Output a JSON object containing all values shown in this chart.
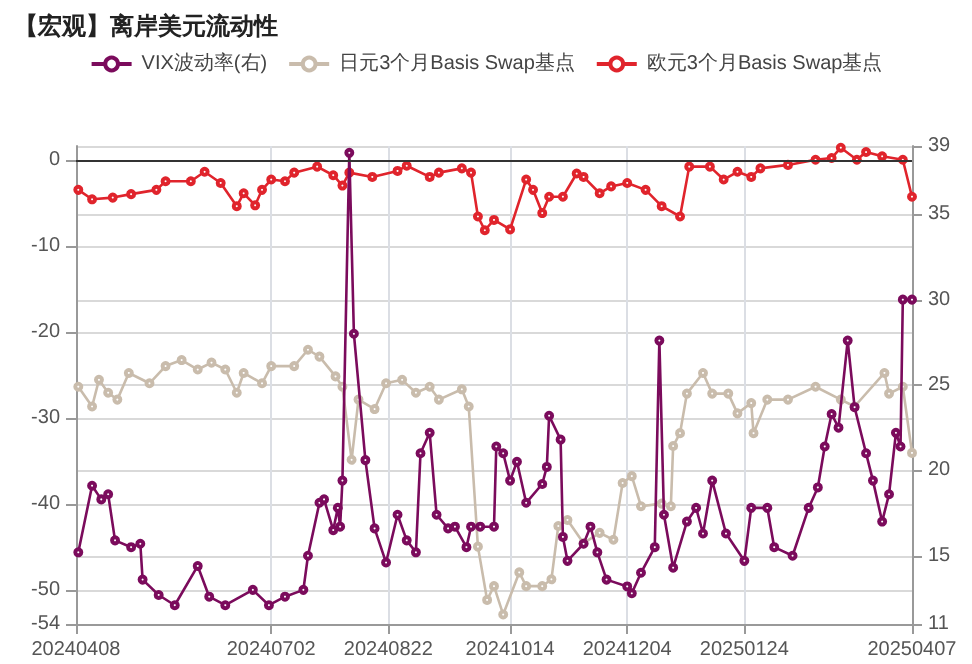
{
  "chart_data": {
    "type": "line",
    "title": "【宏观】离岸美元流动性",
    "series": [
      {
        "name": "VIX波动率(右)",
        "color": "#7b0b5c",
        "axis": "y2",
        "x": [
          "2024-04-09",
          "2024-04-15",
          "2024-04-19",
          "2024-04-22",
          "2024-04-25",
          "2024-05-02",
          "2024-05-06",
          "2024-05-07",
          "2024-05-14",
          "2024-05-21",
          "2024-05-31",
          "2024-06-05",
          "2024-06-12",
          "2024-06-24",
          "2024-07-01",
          "2024-07-08",
          "2024-07-16",
          "2024-07-18",
          "2024-07-23",
          "2024-07-25",
          "2024-07-29",
          "2024-07-31",
          "2024-08-01",
          "2024-08-02",
          "2024-08-05",
          "2024-08-07",
          "2024-08-12",
          "2024-08-16",
          "2024-08-21",
          "2024-08-26",
          "2024-08-30",
          "2024-09-03",
          "2024-09-05",
          "2024-09-09",
          "2024-09-12",
          "2024-09-17",
          "2024-09-20",
          "2024-09-25",
          "2024-09-27",
          "2024-10-01",
          "2024-10-07",
          "2024-10-08",
          "2024-10-11",
          "2024-10-14",
          "2024-10-17",
          "2024-10-21",
          "2024-10-28",
          "2024-10-30",
          "2024-10-31",
          "2024-11-05",
          "2024-11-06",
          "2024-11-08",
          "2024-11-15",
          "2024-11-18",
          "2024-11-21",
          "2024-11-25",
          "2024-12-04",
          "2024-12-06",
          "2024-12-10",
          "2024-12-16",
          "2024-12-18",
          "2024-12-20",
          "2024-12-24",
          "2024-12-30",
          "2025-01-03",
          "2025-01-06",
          "2025-01-10",
          "2025-01-16",
          "2025-01-24",
          "2025-01-27",
          "2025-02-03",
          "2025-02-06",
          "2025-02-14",
          "2025-02-21",
          "2025-02-25",
          "2025-02-28",
          "2025-03-03",
          "2025-03-06",
          "2025-03-10",
          "2025-03-13",
          "2025-03-18",
          "2025-03-21",
          "2025-03-25",
          "2025-03-28",
          "2025-03-31",
          "2025-04-02",
          "2025-04-03",
          "2025-04-07"
        ],
        "values": [
          15.2,
          19.1,
          18.3,
          18.6,
          15.9,
          15.5,
          15.7,
          13.6,
          12.7,
          12.1,
          14.4,
          12.6,
          12.1,
          13,
          12.1,
          12.6,
          13,
          15,
          18.1,
          18.3,
          16.5,
          17.8,
          16.7,
          19.4,
          38.6,
          28,
          20.6,
          16.6,
          14.6,
          17.4,
          15.9,
          15.2,
          21,
          22.2,
          17.4,
          16.6,
          16.7,
          15.5,
          16.7,
          16.7,
          16.7,
          21.4,
          21,
          19.4,
          20.5,
          18.1,
          19.2,
          20.2,
          23.2,
          21.8,
          16.1,
          14.7,
          15.7,
          16.7,
          15.2,
          13.6,
          13.2,
          12.8,
          14,
          15.5,
          27.6,
          17.4,
          14.3,
          17,
          17.8,
          16.3,
          19.4,
          16.3,
          14.7,
          17.8,
          17.8,
          15.5,
          15,
          17.8,
          19,
          21.4,
          23.3,
          22.5,
          27.6,
          23.7,
          21,
          19.4,
          17,
          18.6,
          22.2,
          21.4,
          30,
          30
        ]
      },
      {
        "name": "日元3个月Basis Swap基点",
        "color": "#c9bcac",
        "x": [
          "2024-04-09",
          "2024-04-15",
          "2024-04-18",
          "2024-04-22",
          "2024-04-26",
          "2024-05-01",
          "2024-05-10",
          "2024-05-17",
          "2024-05-24",
          "2024-05-31",
          "2024-06-06",
          "2024-06-12",
          "2024-06-17",
          "2024-06-20",
          "2024-06-28",
          "2024-07-02",
          "2024-07-12",
          "2024-07-18",
          "2024-07-23",
          "2024-07-30",
          "2024-08-02",
          "2024-08-06",
          "2024-08-09",
          "2024-08-16",
          "2024-08-21",
          "2024-08-28",
          "2024-09-03",
          "2024-09-09",
          "2024-09-13",
          "2024-09-23",
          "2024-09-26",
          "2024-09-30",
          "2024-10-04",
          "2024-10-07",
          "2024-10-11",
          "2024-10-18",
          "2024-10-21",
          "2024-10-28",
          "2024-11-01",
          "2024-11-04",
          "2024-11-08",
          "2024-11-15",
          "2024-11-22",
          "2024-11-28",
          "2024-12-02",
          "2024-12-06",
          "2024-12-10",
          "2024-12-19",
          "2024-12-23",
          "2024-12-24",
          "2024-12-27",
          "2024-12-30",
          "2025-01-06",
          "2025-01-10",
          "2025-01-17",
          "2025-01-21",
          "2025-01-27",
          "2025-01-28",
          "2025-02-03",
          "2025-02-12",
          "2025-02-24",
          "2025-03-07",
          "2025-03-13",
          "2025-03-26",
          "2025-03-28",
          "2025-04-03",
          "2025-04-07"
        ],
        "values": [
          -26.4,
          -28.7,
          -25.6,
          -27.1,
          -27.9,
          -24.8,
          -26,
          -24,
          -23.3,
          -24.4,
          -23.6,
          -24.4,
          -27.1,
          -24.8,
          -26,
          -24,
          -24,
          -22.1,
          -22.9,
          -25.2,
          -26.4,
          -34.9,
          -27.9,
          -29,
          -26,
          -25.6,
          -27.1,
          -26.4,
          -27.9,
          -26.7,
          -28.7,
          -45,
          -51.2,
          -49.6,
          -52.9,
          -48,
          -49.6,
          -49.6,
          -48.8,
          -42.6,
          -41.9,
          -44.6,
          -43.4,
          -44.2,
          -37.6,
          -36.8,
          -40.3,
          -40,
          -40.3,
          -33.3,
          -31.8,
          -27.2,
          -24.8,
          -27.2,
          -27.2,
          -29.5,
          -28.3,
          -31.8,
          -27.9,
          -27.9,
          -26.4,
          -27.9,
          -28.7,
          -24.8,
          -27.2,
          -26.4,
          -34.1
        ]
      },
      {
        "name": "欧元3个月Basis Swap基点",
        "color": "#e0242c",
        "x": [
          "2024-04-09",
          "2024-04-15",
          "2024-04-24",
          "2024-05-02",
          "2024-05-13",
          "2024-05-17",
          "2024-05-28",
          "2024-06-03",
          "2024-06-10",
          "2024-06-17",
          "2024-06-20",
          "2024-06-25",
          "2024-06-28",
          "2024-07-02",
          "2024-07-08",
          "2024-07-12",
          "2024-07-22",
          "2024-07-29",
          "2024-08-02",
          "2024-08-05",
          "2024-08-15",
          "2024-08-26",
          "2024-08-30",
          "2024-09-09",
          "2024-09-13",
          "2024-09-23",
          "2024-09-27",
          "2024-09-30",
          "2024-10-03",
          "2024-10-07",
          "2024-10-14",
          "2024-10-21",
          "2024-10-24",
          "2024-10-28",
          "2024-10-31",
          "2024-11-06",
          "2024-11-12",
          "2024-11-15",
          "2024-11-22",
          "2024-11-27",
          "2024-12-04",
          "2024-12-12",
          "2024-12-19",
          "2024-12-27",
          "2024-12-31",
          "2025-01-09",
          "2025-01-15",
          "2025-01-21",
          "2025-01-27",
          "2025-01-31",
          "2025-02-12",
          "2025-02-24",
          "2025-03-03",
          "2025-03-07",
          "2025-03-14",
          "2025-03-18",
          "2025-03-25",
          "2025-04-03",
          "2025-04-07"
        ],
        "values": [
          -3.5,
          -4.6,
          -4.4,
          -4,
          -3.5,
          -2.5,
          -2.5,
          -1.4,
          -2.7,
          -5.4,
          -3.9,
          -5.3,
          -3.5,
          -2.3,
          -2.5,
          -1.5,
          -0.8,
          -1.8,
          -3,
          -1.5,
          -2,
          -1.3,
          -0.7,
          -2,
          -1.5,
          -1,
          -1.5,
          -6.6,
          -8.2,
          -7,
          -8.1,
          -2.3,
          -3.5,
          -6.2,
          -4.3,
          -4.3,
          -1.6,
          -2,
          -3.9,
          -3.1,
          -2.7,
          -3.5,
          -5.4,
          -6.6,
          -0.8,
          -0.8,
          -2.3,
          -1.4,
          -2,
          -1,
          -0.6,
          0,
          0.2,
          1.4,
          0,
          0.9,
          0.4,
          0,
          -4.3
        ]
      }
    ],
    "xlim": [
      "2024-04-08",
      "2025-04-07"
    ],
    "xticks": [
      {
        "value": "2024-04-08",
        "label": "20240408"
      },
      {
        "value": "2024-07-02",
        "label": "20240702"
      },
      {
        "value": "2024-08-22",
        "label": "20240822"
      },
      {
        "value": "2024-10-14",
        "label": "20241014"
      },
      {
        "value": "2024-12-04",
        "label": "20241204"
      },
      {
        "value": "2025-01-24",
        "label": "20250124"
      },
      {
        "value": "2025-04-07",
        "label": "20250407"
      }
    ],
    "ylim": [
      -54,
      1.6
    ],
    "yticks": [
      -54,
      -50,
      -40,
      -30,
      -20,
      -10,
      0
    ],
    "y2lim": [
      11,
      39
    ],
    "y2ticks": [
      11,
      15,
      20,
      25,
      30,
      35,
      39
    ],
    "ref_lines": [
      {
        "axis": "y",
        "value": 0,
        "color": "#333333"
      }
    ],
    "grid": true,
    "legend": "top",
    "marker": "circle",
    "line_style": "solid"
  }
}
